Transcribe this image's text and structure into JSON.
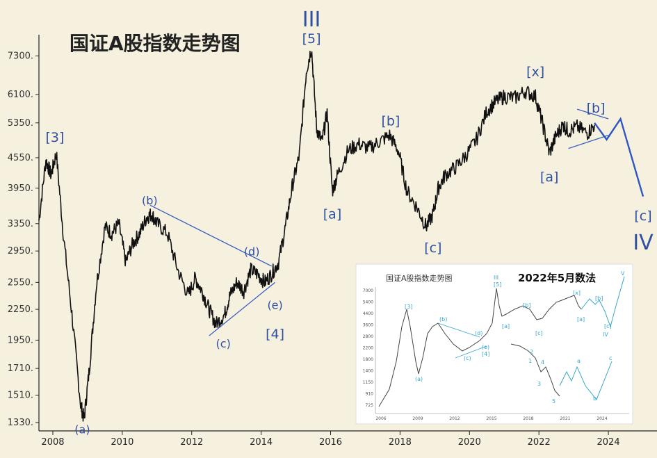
{
  "chart_data": {
    "type": "line",
    "title": "国证A股指数走势图",
    "x_ticks": [
      "2008",
      "2010",
      "2012",
      "2014",
      "2016",
      "2018",
      "2020",
      "2022",
      "2024"
    ],
    "x_range": [
      2007.6,
      2025.0
    ],
    "y_ticks": [
      "7300.",
      "6100.",
      "5350.",
      "4550.",
      "3950.",
      "3350.",
      "2950.",
      "2550.",
      "2250.",
      "1950.",
      "1710.",
      "1510.",
      "1330."
    ],
    "y_tick_values": [
      7300,
      6100,
      5350,
      4550,
      3950,
      3350,
      2950,
      2550,
      2250,
      1950,
      1710,
      1510,
      1330
    ],
    "y_scale": "log",
    "y_range": [
      1300,
      7800
    ],
    "series": [
      {
        "x": [
          2007.6,
          2007.8,
          2007.95,
          2008.1,
          2008.3,
          2008.55,
          2008.8,
          2008.9,
          2009.05,
          2009.25,
          2009.5,
          2009.7,
          2009.9,
          2010.1,
          2010.3,
          2010.5,
          2010.7,
          2010.85,
          2011.0,
          2011.3,
          2011.6,
          2011.9,
          2012.1,
          2012.3,
          2012.5,
          2012.7,
          2012.95,
          2013.1,
          2013.3,
          2013.5,
          2013.7,
          2013.9,
          2014.1,
          2014.3,
          2014.5,
          2014.7,
          2014.9,
          2015.1,
          2015.3,
          2015.45,
          2015.6,
          2015.75,
          2015.9,
          2016.05,
          2016.2,
          2016.5,
          2016.8,
          2017.1,
          2017.4,
          2017.7,
          2017.95,
          2018.2,
          2018.5,
          2018.75,
          2018.95,
          2019.1,
          2019.3,
          2019.6,
          2019.9,
          2020.2,
          2020.5,
          2020.75,
          2021.0,
          2021.3,
          2021.6,
          2021.9,
          2022.1,
          2022.3,
          2022.5,
          2022.7,
          2022.85,
          2023.1,
          2023.4,
          2023.6
        ],
        "y": [
          3400,
          4500,
          4200,
          4650,
          3200,
          2200,
          1450,
          1350,
          1700,
          2500,
          3300,
          3200,
          3350,
          2800,
          3050,
          3200,
          3450,
          3500,
          3350,
          3200,
          2700,
          2400,
          2600,
          2450,
          2250,
          2100,
          2200,
          2400,
          2550,
          2450,
          2700,
          2650,
          2550,
          2650,
          2800,
          3300,
          4000,
          4600,
          6800,
          7600,
          5200,
          4900,
          5600,
          3900,
          4200,
          4700,
          4850,
          4750,
          4900,
          5050,
          4700,
          3900,
          3600,
          3300,
          3500,
          3950,
          4200,
          4350,
          4600,
          4950,
          5650,
          5900,
          6050,
          6000,
          6200,
          6050,
          5350,
          4650,
          5050,
          5300,
          5150,
          5250,
          5100,
          5300
        ]
      }
    ],
    "projection": {
      "x": [
        2023.6,
        2023.95,
        2024.35,
        2025.0
      ],
      "y": [
        5350,
        4950,
        5450,
        3800
      ]
    },
    "wave_labels": [
      {
        "text": "[3]",
        "x": 2007.9,
        "y": 4650,
        "size": "md"
      },
      {
        "text": "(a)",
        "x": 2008.85,
        "y": 1350,
        "size": "sm"
      },
      {
        "text": "(b)",
        "x": 2010.95,
        "y": 3550,
        "size": "sm"
      },
      {
        "text": "(c)",
        "x": 2012.95,
        "y": 2050,
        "size": "sm"
      },
      {
        "text": "(d)",
        "x": 2013.85,
        "y": 2800,
        "size": "sm"
      },
      {
        "text": "(e)",
        "x": 2014.4,
        "y": 2450,
        "size": "sm"
      },
      {
        "text": "[4]",
        "x": 2014.4,
        "y": 2250,
        "size": "md"
      },
      {
        "text": "III",
        "x": 2015.45,
        "y": 7600,
        "size": "xl"
      },
      {
        "text": "[5]",
        "x": 2015.45,
        "y": 7600,
        "size": "md"
      },
      {
        "text": "[a]",
        "x": 2016.05,
        "y": 3800,
        "size": "md"
      },
      {
        "text": "[b]",
        "x": 2017.85,
        "y": 5050,
        "size": "md"
      },
      {
        "text": "[c]",
        "x": 2018.95,
        "y": 3250,
        "size": "md"
      },
      {
        "text": "[x]",
        "x": 2021.9,
        "y": 6350,
        "size": "md"
      },
      {
        "text": "[a]",
        "x": 2022.3,
        "y": 4550,
        "size": "md"
      },
      {
        "text": "[b]",
        "x": 2024.0,
        "y": 5500,
        "size": "md"
      },
      {
        "text": "[c]",
        "x": 2025.0,
        "y": 3750,
        "size": "md"
      },
      {
        "text": "IV",
        "x": 2025.0,
        "y": 3750,
        "size": "xl"
      }
    ],
    "trendlines": [
      {
        "x": [
          2010.8,
          2014.3
        ],
        "y": [
          3650,
          2750
        ]
      },
      {
        "x": [
          2012.5,
          2014.4
        ],
        "y": [
          1990,
          2550
        ]
      },
      {
        "x": [
          2023.1,
          2024.0
        ],
        "y": [
          5700,
          5450
        ]
      },
      {
        "x": [
          2022.85,
          2024.0
        ],
        "y": [
          4750,
          5050
        ]
      }
    ]
  },
  "inset": {
    "title": "国证A股指数走势图",
    "note": "2022年5月数法",
    "x_ticks": [
      "2006",
      "2009",
      "2012",
      "2015",
      "2018",
      "2021",
      "2024"
    ],
    "y_ticks": [
      "7000",
      "5400",
      "4400",
      "3600",
      "2800",
      "2200",
      "1800",
      "1400",
      "1150",
      "910",
      "725"
    ],
    "labels": [
      "[3]",
      "(a)",
      "(b)",
      "(c)",
      "(d)",
      "(e)",
      "[4]",
      "III",
      "[5]",
      "[a]",
      "[b]",
      "[c]",
      "[x]",
      "[a]",
      "[b]",
      "[c]",
      "IV",
      "V",
      "1",
      "2",
      "3",
      "4",
      "5",
      "a",
      "b",
      "c"
    ]
  }
}
